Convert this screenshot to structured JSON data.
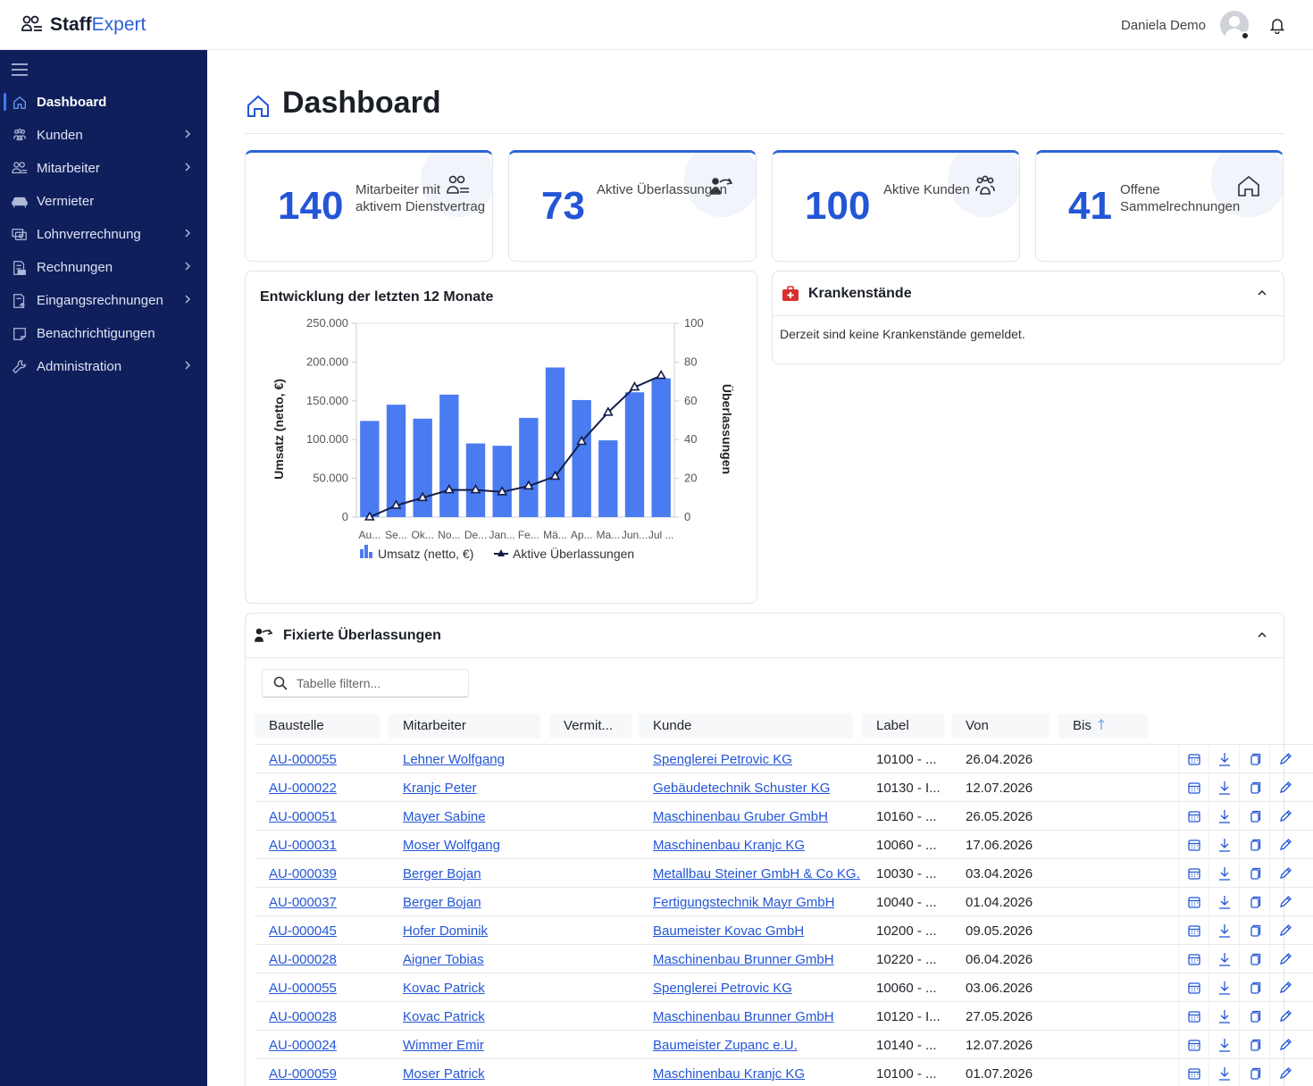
{
  "app": {
    "brand_bold": "Staff",
    "brand_accent": "Expert",
    "user_name": "Daniela Demo"
  },
  "sidebar": {
    "items": [
      {
        "label": "Dashboard",
        "icon": "home-icon",
        "active": true,
        "has_children": false
      },
      {
        "label": "Kunden",
        "icon": "customers-icon",
        "active": false,
        "has_children": true
      },
      {
        "label": "Mitarbeiter",
        "icon": "employees-icon",
        "active": false,
        "has_children": true
      },
      {
        "label": "Vermieter",
        "icon": "sofa-icon",
        "active": false,
        "has_children": false
      },
      {
        "label": "Lohnverrechnung",
        "icon": "payroll-icon",
        "active": false,
        "has_children": true
      },
      {
        "label": "Rechnungen",
        "icon": "invoice-icon",
        "active": false,
        "has_children": true
      },
      {
        "label": "Eingangsrechnungen",
        "icon": "incoming-invoice-icon",
        "active": false,
        "has_children": true
      },
      {
        "label": "Benachrichtigungen",
        "icon": "notification-icon",
        "active": false,
        "has_children": false
      },
      {
        "label": "Administration",
        "icon": "wrench-icon",
        "active": false,
        "has_children": true
      }
    ]
  },
  "page": {
    "title": "Dashboard"
  },
  "stats": [
    {
      "value": "140",
      "label": "Mitarbeiter mit aktivem Dienstvertrag",
      "icon": "employees-icon"
    },
    {
      "value": "73",
      "label": "Aktive Überlassungen",
      "icon": "assignment-icon"
    },
    {
      "value": "100",
      "label": "Aktive Kunden",
      "icon": "customers-icon"
    },
    {
      "value": "41",
      "label": "Offene Sammelrechnungen",
      "icon": "home-icon"
    }
  ],
  "chart_data": {
    "type": "bar",
    "title": "Entwicklung der letzten 12 Monate",
    "categories": [
      "Au...",
      "Se...",
      "Ok...",
      "No...",
      "De...",
      "Jan...",
      "Fe...",
      "Mä...",
      "Ap...",
      "Ma...",
      "Jun...",
      "Jul ..."
    ],
    "series": [
      {
        "name": "Umsatz (netto, €)",
        "type": "bar",
        "axis": "left",
        "values": [
          124000,
          145000,
          127000,
          158000,
          95000,
          92000,
          128000,
          193000,
          151000,
          99000,
          161000,
          179000
        ]
      },
      {
        "name": "Aktive Überlassungen",
        "type": "line",
        "axis": "right",
        "values": [
          0,
          6,
          10,
          14,
          14,
          13,
          16,
          21,
          39,
          54,
          67,
          73
        ]
      }
    ],
    "ylabel": "Umsatz (netto, €)",
    "y2label": "Überlassungen",
    "ylim": [
      0,
      250000
    ],
    "y2lim": [
      0,
      100
    ],
    "yticks": [
      "0",
      "50.000",
      "100.000",
      "150.000",
      "200.000",
      "250.000"
    ],
    "y2ticks": [
      "0",
      "20",
      "40",
      "60",
      "80",
      "100"
    ],
    "legend": "bottom",
    "grid": false,
    "colors": {
      "bar": "#4a7bf0",
      "line": "#141c4a"
    }
  },
  "sick": {
    "title": "Krankenstände",
    "message": "Derzeit sind keine Krankenstände gemeldet."
  },
  "fixed": {
    "title": "Fixierte Überlassungen",
    "search_placeholder": "Tabelle filtern...",
    "columns": [
      "Baustelle",
      "Mitarbeiter",
      "Vermit...",
      "Kunde",
      "Label",
      "Von",
      "Bis"
    ],
    "rows": [
      {
        "baustelle": "AU-000055",
        "mitarbeiter": "Lehner Wolfgang",
        "vermittler": "",
        "kunde": "Spenglerei Petrovic KG",
        "label": "10100 - ...",
        "von": "26.04.2026",
        "bis": ""
      },
      {
        "baustelle": "AU-000022",
        "mitarbeiter": "Kranjc Peter",
        "vermittler": "",
        "kunde": "Gebäudetechnik Schuster KG",
        "label": "10130 - I...",
        "von": "12.07.2026",
        "bis": ""
      },
      {
        "baustelle": "AU-000051",
        "mitarbeiter": "Mayer Sabine",
        "vermittler": "",
        "kunde": "Maschinenbau Gruber GmbH",
        "label": "10160 - ...",
        "von": "26.05.2026",
        "bis": ""
      },
      {
        "baustelle": "AU-000031",
        "mitarbeiter": "Moser Wolfgang",
        "vermittler": "",
        "kunde": "Maschinenbau Kranjc KG",
        "label": "10060 - ...",
        "von": "17.06.2026",
        "bis": ""
      },
      {
        "baustelle": "AU-000039",
        "mitarbeiter": "Berger Bojan",
        "vermittler": "",
        "kunde": "Metallbau Steiner GmbH & Co KG...",
        "label": "10030 - ...",
        "von": "03.04.2026",
        "bis": ""
      },
      {
        "baustelle": "AU-000037",
        "mitarbeiter": "Berger Bojan",
        "vermittler": "",
        "kunde": "Fertigungstechnik Mayr GmbH",
        "label": "10040 - ...",
        "von": "01.04.2026",
        "bis": ""
      },
      {
        "baustelle": "AU-000045",
        "mitarbeiter": "Hofer Dominik",
        "vermittler": "",
        "kunde": "Baumeister Kovac GmbH",
        "label": "10200 - ...",
        "von": "09.05.2026",
        "bis": ""
      },
      {
        "baustelle": "AU-000028",
        "mitarbeiter": "Aigner Tobias",
        "vermittler": "",
        "kunde": "Maschinenbau Brunner GmbH",
        "label": "10220 - ...",
        "von": "06.04.2026",
        "bis": ""
      },
      {
        "baustelle": "AU-000055",
        "mitarbeiter": "Kovac Patrick",
        "vermittler": "",
        "kunde": "Spenglerei Petrovic KG",
        "label": "10060 - ...",
        "von": "03.06.2026",
        "bis": ""
      },
      {
        "baustelle": "AU-000028",
        "mitarbeiter": "Kovac Patrick",
        "vermittler": "",
        "kunde": "Maschinenbau Brunner GmbH",
        "label": "10120 - I...",
        "von": "27.05.2026",
        "bis": ""
      },
      {
        "baustelle": "AU-000024",
        "mitarbeiter": "Wimmer Emir",
        "vermittler": "",
        "kunde": "Baumeister Zupanc e.U.",
        "label": "10140 - ...",
        "von": "12.07.2026",
        "bis": ""
      },
      {
        "baustelle": "AU-000059",
        "mitarbeiter": "Moser Patrick",
        "vermittler": "",
        "kunde": "Maschinenbau Kranjc KG",
        "label": "10100 - ...",
        "von": "01.07.2026",
        "bis": ""
      }
    ]
  }
}
